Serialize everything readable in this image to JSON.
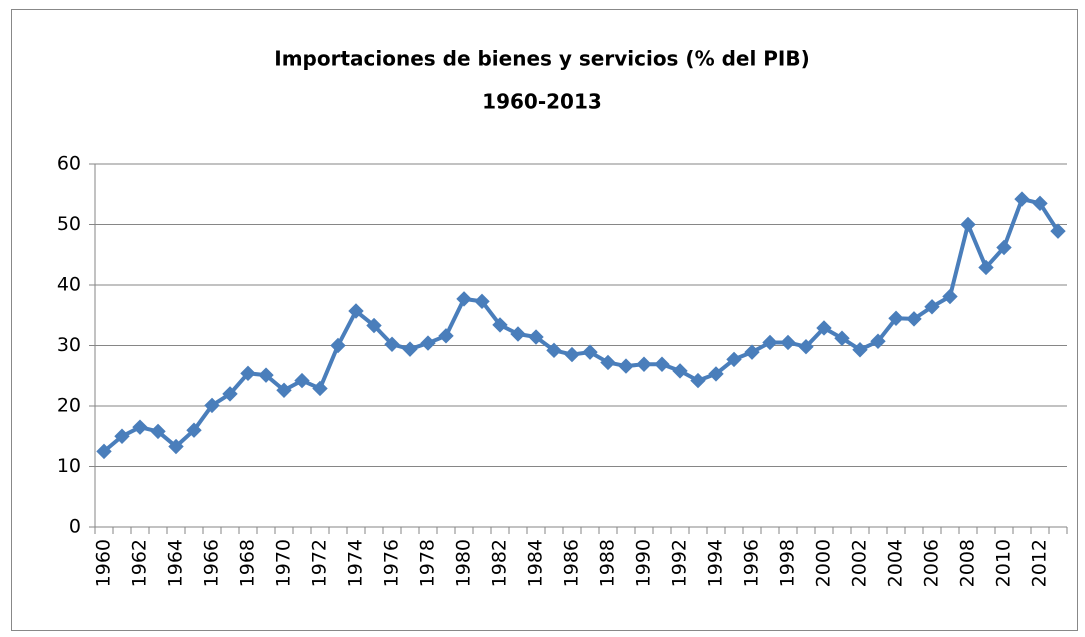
{
  "chart_data": {
    "type": "line",
    "title": "Importaciones de bienes y servicios (% del PIB)",
    "subtitle": "1960-2013",
    "categories": [
      "1960",
      null,
      "1962",
      null,
      "1964",
      null,
      "1966",
      null,
      "1968",
      null,
      "1970",
      null,
      "1972",
      null,
      "1974",
      null,
      "1976",
      null,
      "1978",
      null,
      "1980",
      null,
      "1982",
      null,
      "1984",
      null,
      "1986",
      null,
      "1988",
      null,
      "1990",
      null,
      "1992",
      null,
      "1994",
      null,
      "1996",
      null,
      "1998",
      null,
      "2000",
      null,
      "2002",
      null,
      "2004",
      null,
      "2006",
      null,
      "2008",
      null,
      "2010",
      null,
      "2012",
      null
    ],
    "series": [
      {
        "color": "#4a7ebb",
        "values": [
          12.5,
          15,
          16.5,
          15.8,
          13.3,
          16,
          20.1,
          22,
          25.4,
          25.1,
          22.6,
          24.2,
          22.9,
          30,
          35.7,
          33.3,
          30.2,
          29.4,
          30.4,
          31.6,
          37.7,
          37.3,
          33.4,
          31.9,
          31.4,
          29.2,
          28.5,
          28.9,
          27.2,
          26.6,
          26.9,
          26.9,
          25.8,
          24.2,
          25.3,
          27.7,
          28.9,
          30.5,
          30.5,
          29.8,
          32.9,
          31.2,
          29.3,
          30.7,
          34.5,
          34.4,
          36.4,
          38.1,
          50,
          42.9,
          46.2,
          54.2,
          53.5,
          48.9
        ]
      }
    ],
    "ylim": [
      0,
      60
    ],
    "yticks": [
      0,
      10,
      20,
      30,
      40,
      50,
      60
    ],
    "grid": true
  }
}
